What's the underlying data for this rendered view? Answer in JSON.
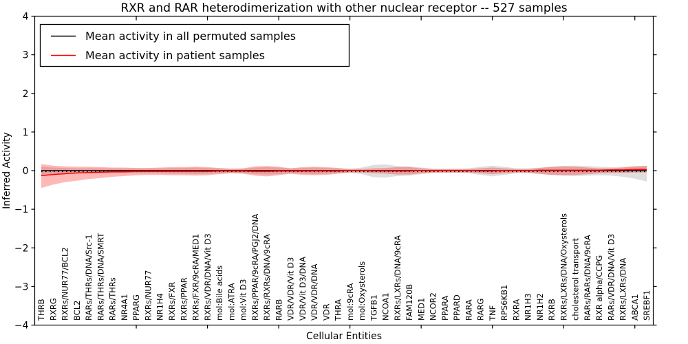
{
  "chart_data": {
    "type": "line",
    "title": "RXR and RAR heterodimerization with other nuclear receptor -- 527 samples",
    "xlabel": "Cellular Entities",
    "ylabel": "Inferred Activity",
    "ylim": [
      -4,
      4
    ],
    "yticks": [
      -4,
      -3,
      -2,
      -1,
      0,
      1,
      2,
      3,
      4
    ],
    "xtick_index_positions": [
      8,
      14,
      20,
      26,
      32,
      38,
      44,
      50
    ],
    "grid": false,
    "legend": {
      "position": "upper left",
      "entries": [
        {
          "label": "Mean activity in all permuted samples",
          "color": "#000000"
        },
        {
          "label": "Mean activity in patient samples",
          "color": "#ff0000"
        }
      ]
    },
    "categories": [
      "THRB",
      "RXRG",
      "RXRs/NUR77/BCL2",
      "BCL2",
      "RARs/THRs/DNA/Src-1",
      "RARs/THRs/DNA/SMRT",
      "RARs/THRs",
      "NR4A1",
      "PPARG",
      "RXRs/NUR77",
      "NR1H4",
      "RXRs/FXR",
      "RXRs/PPAR",
      "RXRs/FXR/9cRA/MED1",
      "RXRs/VDR/DNA/Vit D3",
      "mol:Bile acids",
      "mol:ATRA",
      "mol:Vit D3",
      "RXRs/PPAR/9cRA/PGJ2/DNA",
      "RXRs/RXRs/DNA/9cRA",
      "RARB",
      "VDR/VDR/Vit D3",
      "VDR/Vit D3/DNA",
      "VDR/VDR/DNA",
      "VDR",
      "THRA",
      "mol:9cRA",
      "mol:Oxysterols",
      "TGFB1",
      "NCOA1",
      "RXRs/LXRs/DNA/9cRA",
      "FAM120B",
      "MED1",
      "NCOR2",
      "PPARA",
      "PPARD",
      "RARA",
      "RARG",
      "TNF",
      "RPS6KB1",
      "RXRA",
      "NR1H3",
      "NR1H2",
      "RXRB",
      "RXRs/LXRs/DNA/Oxysterols",
      "cholesterol transport",
      "RARs/RARs/DNA/9cRA",
      "RXR alpha/CCPG",
      "RARs/VDR/DNA/Vit D3",
      "RXRs/LXRs/DNA",
      "ABCA1",
      "SREBF1"
    ],
    "series": [
      {
        "name": "Mean activity in all permuted samples",
        "color": "#000000",
        "style": "solid-with-dots",
        "values": [
          0,
          0,
          0,
          0,
          0,
          0,
          0,
          0,
          0,
          0,
          0,
          0,
          0,
          0,
          0,
          0,
          0,
          0,
          0,
          0,
          0,
          0,
          0,
          0,
          0,
          0,
          0,
          0,
          0,
          0,
          0,
          0,
          0,
          0,
          0,
          0,
          0,
          0,
          0,
          0,
          0,
          0,
          0,
          0,
          0,
          0,
          0,
          0,
          0,
          0,
          0,
          0
        ]
      },
      {
        "name": "Mean activity in patient samples",
        "color": "#ff0000",
        "style": "solid",
        "values": [
          -0.13,
          -0.1,
          -0.08,
          -0.06,
          -0.05,
          -0.04,
          -0.03,
          -0.03,
          -0.02,
          -0.02,
          -0.02,
          -0.02,
          -0.02,
          -0.02,
          -0.02,
          -0.01,
          -0.01,
          -0.01,
          -0.02,
          -0.02,
          -0.01,
          -0.01,
          -0.01,
          -0.01,
          -0.01,
          -0.01,
          0,
          0,
          -0.01,
          -0.01,
          -0.01,
          -0.01,
          0,
          0,
          0,
          0,
          0,
          -0.01,
          -0.01,
          0,
          0,
          0,
          0.01,
          0.01,
          0.01,
          0.01,
          0.01,
          0.01,
          0.02,
          0.02,
          0.03,
          0.03
        ]
      }
    ],
    "bands": [
      {
        "name": "permuted-samples-std-band",
        "color": "#000000",
        "opacity": 0.13,
        "upper": [
          0.1,
          0.08,
          0.07,
          0.06,
          0.06,
          0.06,
          0.06,
          0.06,
          0.06,
          0.06,
          0.06,
          0.07,
          0.07,
          0.08,
          0.07,
          0.06,
          0.05,
          0.05,
          0.08,
          0.09,
          0.08,
          0.06,
          0.07,
          0.08,
          0.07,
          0.06,
          0.05,
          0.08,
          0.15,
          0.16,
          0.12,
          0.11,
          0.08,
          0.05,
          0.05,
          0.05,
          0.06,
          0.1,
          0.13,
          0.1,
          0.06,
          0.06,
          0.08,
          0.1,
          0.12,
          0.13,
          0.12,
          0.1,
          0.09,
          0.1,
          0.11,
          0.11
        ],
        "lower": [
          -0.12,
          -0.1,
          -0.08,
          -0.07,
          -0.07,
          -0.07,
          -0.07,
          -0.07,
          -0.07,
          -0.07,
          -0.07,
          -0.08,
          -0.08,
          -0.09,
          -0.08,
          -0.07,
          -0.06,
          -0.06,
          -0.09,
          -0.1,
          -0.09,
          -0.07,
          -0.08,
          -0.09,
          -0.08,
          -0.07,
          -0.06,
          -0.09,
          -0.17,
          -0.18,
          -0.14,
          -0.13,
          -0.09,
          -0.06,
          -0.06,
          -0.06,
          -0.07,
          -0.11,
          -0.15,
          -0.11,
          -0.07,
          -0.07,
          -0.09,
          -0.11,
          -0.13,
          -0.14,
          -0.13,
          -0.12,
          -0.13,
          -0.16,
          -0.21,
          -0.28
        ]
      },
      {
        "name": "patient-samples-std-band",
        "color": "#ff0000",
        "opacity": 0.28,
        "upper": [
          0.17,
          0.13,
          0.11,
          0.1,
          0.1,
          0.09,
          0.08,
          0.08,
          0.07,
          0.07,
          0.08,
          0.09,
          0.09,
          0.1,
          0.09,
          0.07,
          0.05,
          0.06,
          0.11,
          0.12,
          0.1,
          0.06,
          0.09,
          0.1,
          0.09,
          0.07,
          0.04,
          0.04,
          0.06,
          0.07,
          0.09,
          0.09,
          0.06,
          0.04,
          0.04,
          0.04,
          0.04,
          0.06,
          0.08,
          0.06,
          0.04,
          0.04,
          0.07,
          0.1,
          0.11,
          0.1,
          0.08,
          0.06,
          0.06,
          0.08,
          0.11,
          0.13
        ],
        "lower": [
          -0.45,
          -0.36,
          -0.3,
          -0.26,
          -0.22,
          -0.19,
          -0.16,
          -0.14,
          -0.12,
          -0.11,
          -0.11,
          -0.12,
          -0.12,
          -0.13,
          -0.12,
          -0.09,
          -0.07,
          -0.08,
          -0.13,
          -0.15,
          -0.12,
          -0.08,
          -0.11,
          -0.12,
          -0.11,
          -0.08,
          -0.05,
          -0.05,
          -0.07,
          -0.08,
          -0.1,
          -0.1,
          -0.07,
          -0.05,
          -0.05,
          -0.05,
          -0.05,
          -0.07,
          -0.09,
          -0.07,
          -0.05,
          -0.05,
          -0.08,
          -0.11,
          -0.12,
          -0.11,
          -0.09,
          -0.07,
          -0.06,
          -0.06,
          -0.05,
          -0.05
        ]
      }
    ]
  }
}
